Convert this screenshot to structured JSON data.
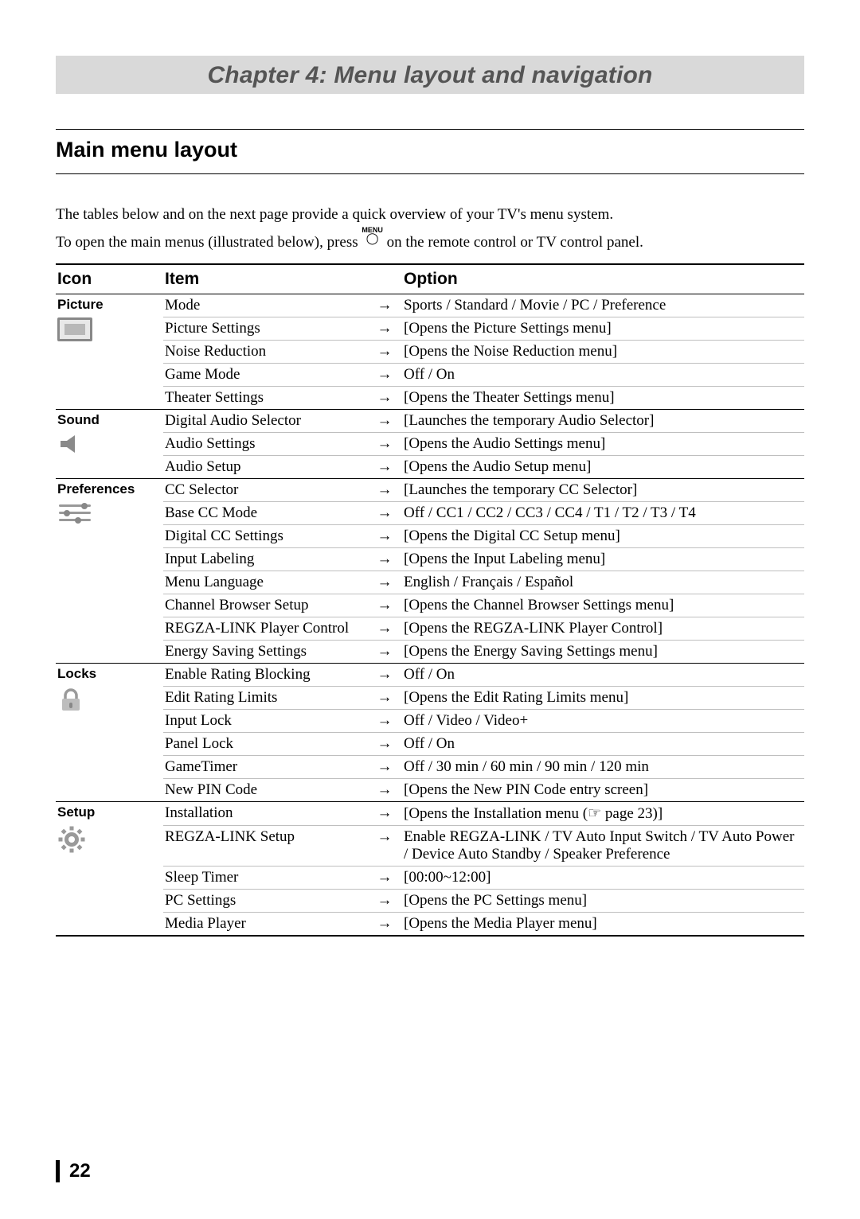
{
  "chapter_title": "Chapter 4: Menu layout and navigation",
  "section_title": "Main menu layout",
  "intro_line1": "The tables below and on the next page provide a quick overview of your TV's menu system.",
  "intro_line2_a": "To open the main menus (illustrated below), press ",
  "intro_line2_b": " on the remote control or TV control panel.",
  "menu_button_label": "MENU",
  "page_number": "22",
  "arrow": "→",
  "headers": {
    "icon": "Icon",
    "item": "Item",
    "option": "Option"
  },
  "colors": {
    "chapter_bg": "#d9d9d9",
    "chapter_text": "#555555",
    "row_border": "#bfbfbf",
    "icon_gray": "#999999"
  },
  "groups": [
    {
      "name": "Picture",
      "icon": "picture",
      "rows": [
        {
          "item": "Mode",
          "option": "Sports / Standard / Movie / PC / Preference"
        },
        {
          "item": "Picture Settings",
          "option": "[Opens the Picture Settings menu]"
        },
        {
          "item": "Noise Reduction",
          "option": "[Opens the Noise Reduction menu]"
        },
        {
          "item": "Game Mode",
          "option": "Off / On"
        },
        {
          "item": "Theater Settings",
          "option": "[Opens the Theater Settings menu]"
        }
      ]
    },
    {
      "name": "Sound",
      "icon": "sound",
      "rows": [
        {
          "item": "Digital Audio Selector",
          "option": "[Launches the temporary Audio Selector]"
        },
        {
          "item": "Audio Settings",
          "option": "[Opens the Audio Settings menu]"
        },
        {
          "item": "Audio Setup",
          "option": "[Opens the Audio Setup menu]"
        }
      ]
    },
    {
      "name": "Preferences",
      "icon": "prefs",
      "rows": [
        {
          "item": "CC Selector",
          "option": "[Launches the temporary CC Selector]"
        },
        {
          "item": "Base CC Mode",
          "option": "Off / CC1 / CC2 / CC3 / CC4 / T1 / T2 / T3 / T4"
        },
        {
          "item": "Digital CC Settings",
          "option": "[Opens the Digital CC Setup menu]"
        },
        {
          "item": "Input Labeling",
          "option": "[Opens the Input Labeling menu]"
        },
        {
          "item": "Menu Language",
          "option": "English / Français / Español"
        },
        {
          "item": "Channel Browser Setup",
          "option": "[Opens the Channel Browser Settings menu]"
        },
        {
          "item": "REGZA-LINK Player Control",
          "option": "[Opens the REGZA-LINK Player Control]"
        },
        {
          "item": "Energy Saving Settings",
          "option": "[Opens the Energy Saving Settings menu]"
        }
      ]
    },
    {
      "name": "Locks",
      "icon": "lock",
      "rows": [
        {
          "item": "Enable Rating Blocking",
          "option": "Off / On"
        },
        {
          "item": "Edit Rating Limits",
          "option": "[Opens the Edit Rating Limits menu]"
        },
        {
          "item": "Input Lock",
          "option": "Off / Video / Video+"
        },
        {
          "item": "Panel Lock",
          "option": "Off / On"
        },
        {
          "item": "GameTimer",
          "option": "Off / 30 min / 60 min / 90 min / 120 min"
        },
        {
          "item": "New PIN Code",
          "option": "[Opens the New PIN Code entry screen]"
        }
      ]
    },
    {
      "name": "Setup",
      "icon": "gear",
      "rows": [
        {
          "item": "Installation",
          "option": "[Opens the Installation menu (☞ page 23)]"
        },
        {
          "item": "REGZA-LINK Setup",
          "option": "Enable REGZA-LINK / TV Auto Input Switch / TV Auto Power / Device Auto Standby / Speaker Preference"
        },
        {
          "item": "Sleep Timer",
          "option": "[00:00~12:00]"
        },
        {
          "item": "PC Settings",
          "option": "[Opens the PC Settings menu]"
        },
        {
          "item": "Media Player",
          "option": "[Opens the Media Player menu]"
        }
      ]
    }
  ]
}
